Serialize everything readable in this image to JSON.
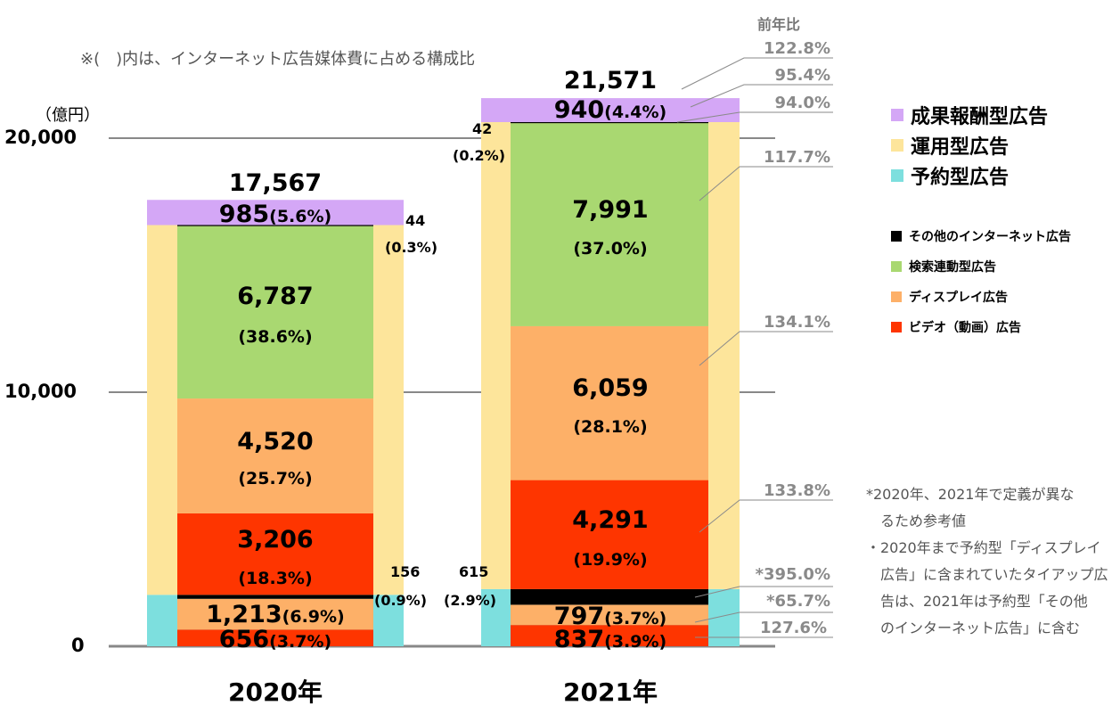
{
  "chart_data": {
    "type": "bar",
    "subtype": "stacked",
    "note_top": "※(　)内は、インターネット広告媒体費に占める構成比",
    "unit_label": "（億円）",
    "yoy_header": "前年比",
    "ylim": [
      0,
      22000
    ],
    "yticks": [
      {
        "v": 0,
        "label": "0"
      },
      {
        "v": 10000,
        "label": "10,000"
      },
      {
        "v": 20000,
        "label": "20,000"
      }
    ],
    "categories": [
      "2020年",
      "2021年"
    ],
    "totals": [
      "17,567",
      "21,571"
    ],
    "legend_groups": [
      {
        "name": "成果報酬型広告",
        "color": "#d4a7f6"
      },
      {
        "name": "運用型広告",
        "color": "#fde59b"
      },
      {
        "name": "予約型広告",
        "color": "#7ddfde"
      }
    ],
    "legend_items": [
      {
        "name": "その他のインターネット広告",
        "color": "#000000"
      },
      {
        "name": "検索連動型広告",
        "color": "#a9d871"
      },
      {
        "name": "ディスプレイ広告",
        "color": "#fdb068"
      },
      {
        "name": "ビデオ（動画）広告",
        "color": "#fe3500"
      }
    ],
    "series": [
      {
        "group": "予約型広告",
        "segment": "ビデオ（動画）広告",
        "values": [
          656,
          837
        ],
        "labels": [
          "656",
          "837"
        ],
        "pct": [
          "(3.7%)",
          "(3.9%)"
        ]
      },
      {
        "group": "予約型広告",
        "segment": "ディスプレイ広告",
        "values": [
          1213,
          797
        ],
        "labels": [
          "1,213",
          "797"
        ],
        "pct": [
          "(6.9%)",
          "(3.7%)"
        ]
      },
      {
        "group": "予約型広告",
        "segment": "その他のインターネット広告",
        "values": [
          156,
          615
        ],
        "labels": [
          "156",
          "615"
        ],
        "pct": [
          "(0.9%)",
          "(2.9%)"
        ]
      },
      {
        "group": "運用型広告",
        "segment": "ビデオ（動画）広告",
        "values": [
          3206,
          4291
        ],
        "labels": [
          "3,206",
          "4,291"
        ],
        "pct": [
          "(18.3%)",
          "(19.9%)"
        ]
      },
      {
        "group": "運用型広告",
        "segment": "ディスプレイ広告",
        "values": [
          4520,
          6059
        ],
        "labels": [
          "4,520",
          "6,059"
        ],
        "pct": [
          "(25.7%)",
          "(28.1%)"
        ]
      },
      {
        "group": "運用型広告",
        "segment": "検索連動型広告",
        "values": [
          6787,
          7991
        ],
        "labels": [
          "6,787",
          "7,991"
        ],
        "pct": [
          "(38.6%)",
          "(37.0%)"
        ]
      },
      {
        "group": "運用型広告",
        "segment": "その他のインターネット広告",
        "values": [
          44,
          42
        ],
        "labels": [
          "44",
          "42"
        ],
        "pct": [
          "(0.3%)",
          "(0.2%)"
        ]
      },
      {
        "group": "成果報酬型広告",
        "segment": "成果報酬型広告",
        "values": [
          985,
          940
        ],
        "labels": [
          "985",
          "940"
        ],
        "pct": [
          "(5.6%)",
          "(4.4%)"
        ]
      }
    ],
    "yoy": [
      "122.8%",
      "95.4%",
      "94.0%",
      "117.7%",
      "134.1%",
      "133.8%",
      "*395.0%",
      "*65.7%",
      "127.6%"
    ],
    "footnotes": [
      "*2020年、2021年で定義が異な",
      "るため参考値",
      "・2020年まで予約型「ディスプレイ",
      "広告」に含まれていたタイアップ広",
      "告は、2021年は予約型「その他",
      "のインターネット広告」に含む"
    ]
  }
}
